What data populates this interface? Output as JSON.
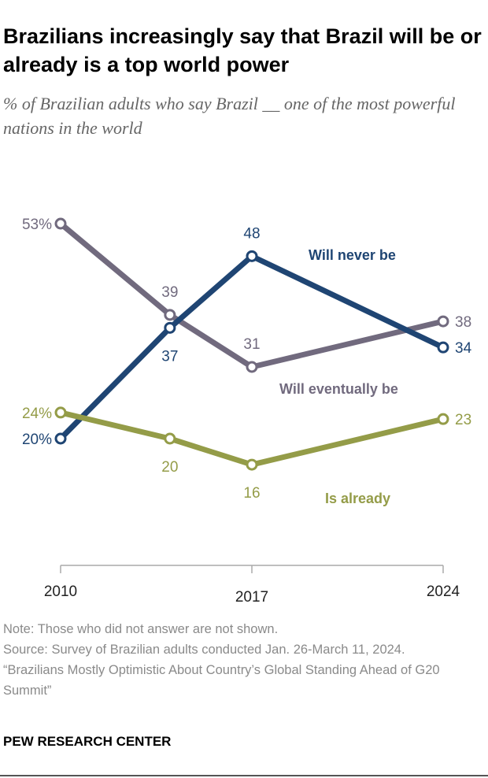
{
  "title": "Brazilians increasingly say that Brazil will be or already is a top world power",
  "subtitle": "% of Brazilian adults who say Brazil __ one of the most powerful nations in the world",
  "chart_data": {
    "type": "line",
    "x": [
      2010,
      2014,
      2017,
      2024
    ],
    "x_tick_labels": [
      "2010",
      "2017",
      "2024"
    ],
    "x_ticks": [
      2010,
      2017,
      2024
    ],
    "ylim": [
      0,
      60
    ],
    "grid": false,
    "legend": "inline labels",
    "series": [
      {
        "name": "Will eventually be",
        "values": [
          53,
          39,
          31,
          38
        ],
        "labels": [
          "53%",
          "39",
          "31",
          "38"
        ],
        "color": "#716a7e"
      },
      {
        "name": "Will never be",
        "values": [
          20,
          37,
          48,
          34
        ],
        "labels": [
          "20%",
          "37",
          "48",
          "34"
        ],
        "color": "#1f4573"
      },
      {
        "name": "Is already",
        "values": [
          24,
          20,
          16,
          23
        ],
        "labels": [
          "24%",
          "20",
          "16",
          "23"
        ],
        "color": "#949c48"
      }
    ]
  },
  "footer": {
    "note": "Note: Those who did not answer are not shown.",
    "source": "Source: Survey of Brazilian adults conducted Jan. 26-March 11, 2024.",
    "report": "“Brazilians Mostly Optimistic About Country’s Global Standing Ahead of G20 Summit”",
    "brand": "PEW RESEARCH CENTER"
  }
}
